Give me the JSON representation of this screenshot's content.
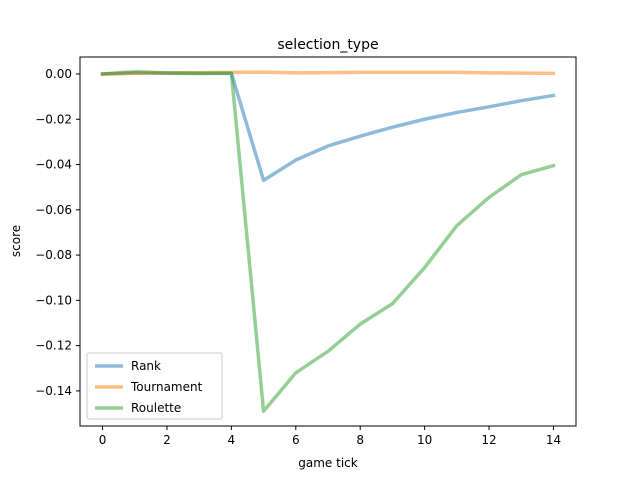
{
  "chart_data": {
    "type": "line",
    "title": "selection_type",
    "xlabel": "game tick",
    "ylabel": "score",
    "xlim": [
      -0.7,
      14.7
    ],
    "ylim": [
      -0.1555,
      0.0075
    ],
    "x_ticks": [
      0,
      2,
      4,
      6,
      8,
      10,
      12,
      14
    ],
    "x_tick_labels": [
      "0",
      "2",
      "4",
      "6",
      "8",
      "10",
      "12",
      "14"
    ],
    "y_ticks": [
      0.0,
      -0.02,
      -0.04,
      -0.06,
      -0.08,
      -0.1,
      -0.12,
      -0.14
    ],
    "y_tick_labels": [
      "0.00",
      "−0.02",
      "−0.04",
      "−0.06",
      "−0.08",
      "−0.10",
      "−0.12",
      "−0.14"
    ],
    "grid": false,
    "legend_position": "lower-left",
    "x": [
      0,
      1,
      2,
      3,
      4,
      5,
      6,
      7,
      8,
      9,
      10,
      11,
      12,
      13,
      14
    ],
    "series": [
      {
        "name": "Rank",
        "color": "#1f77b4",
        "values": [
          0.0,
          0.0005,
          0.0003,
          0.0002,
          0.0003,
          -0.047,
          -0.038,
          -0.0318,
          -0.0275,
          -0.0235,
          -0.02,
          -0.017,
          -0.0145,
          -0.0118,
          -0.0095
        ]
      },
      {
        "name": "Tournament",
        "color": "#ff7f0e",
        "values": [
          0.0,
          0.0003,
          0.0005,
          0.0006,
          0.0007,
          0.0008,
          0.0005,
          0.0006,
          0.0007,
          0.0007,
          0.0007,
          0.0007,
          0.0005,
          0.0004,
          0.0003
        ]
      },
      {
        "name": "Roulette",
        "color": "#2ca02c",
        "values": [
          0.0,
          0.001,
          0.0005,
          0.0003,
          0.0004,
          -0.149,
          -0.132,
          -0.1225,
          -0.1105,
          -0.1015,
          -0.0855,
          -0.067,
          -0.0545,
          -0.0445,
          -0.0405
        ]
      }
    ]
  }
}
